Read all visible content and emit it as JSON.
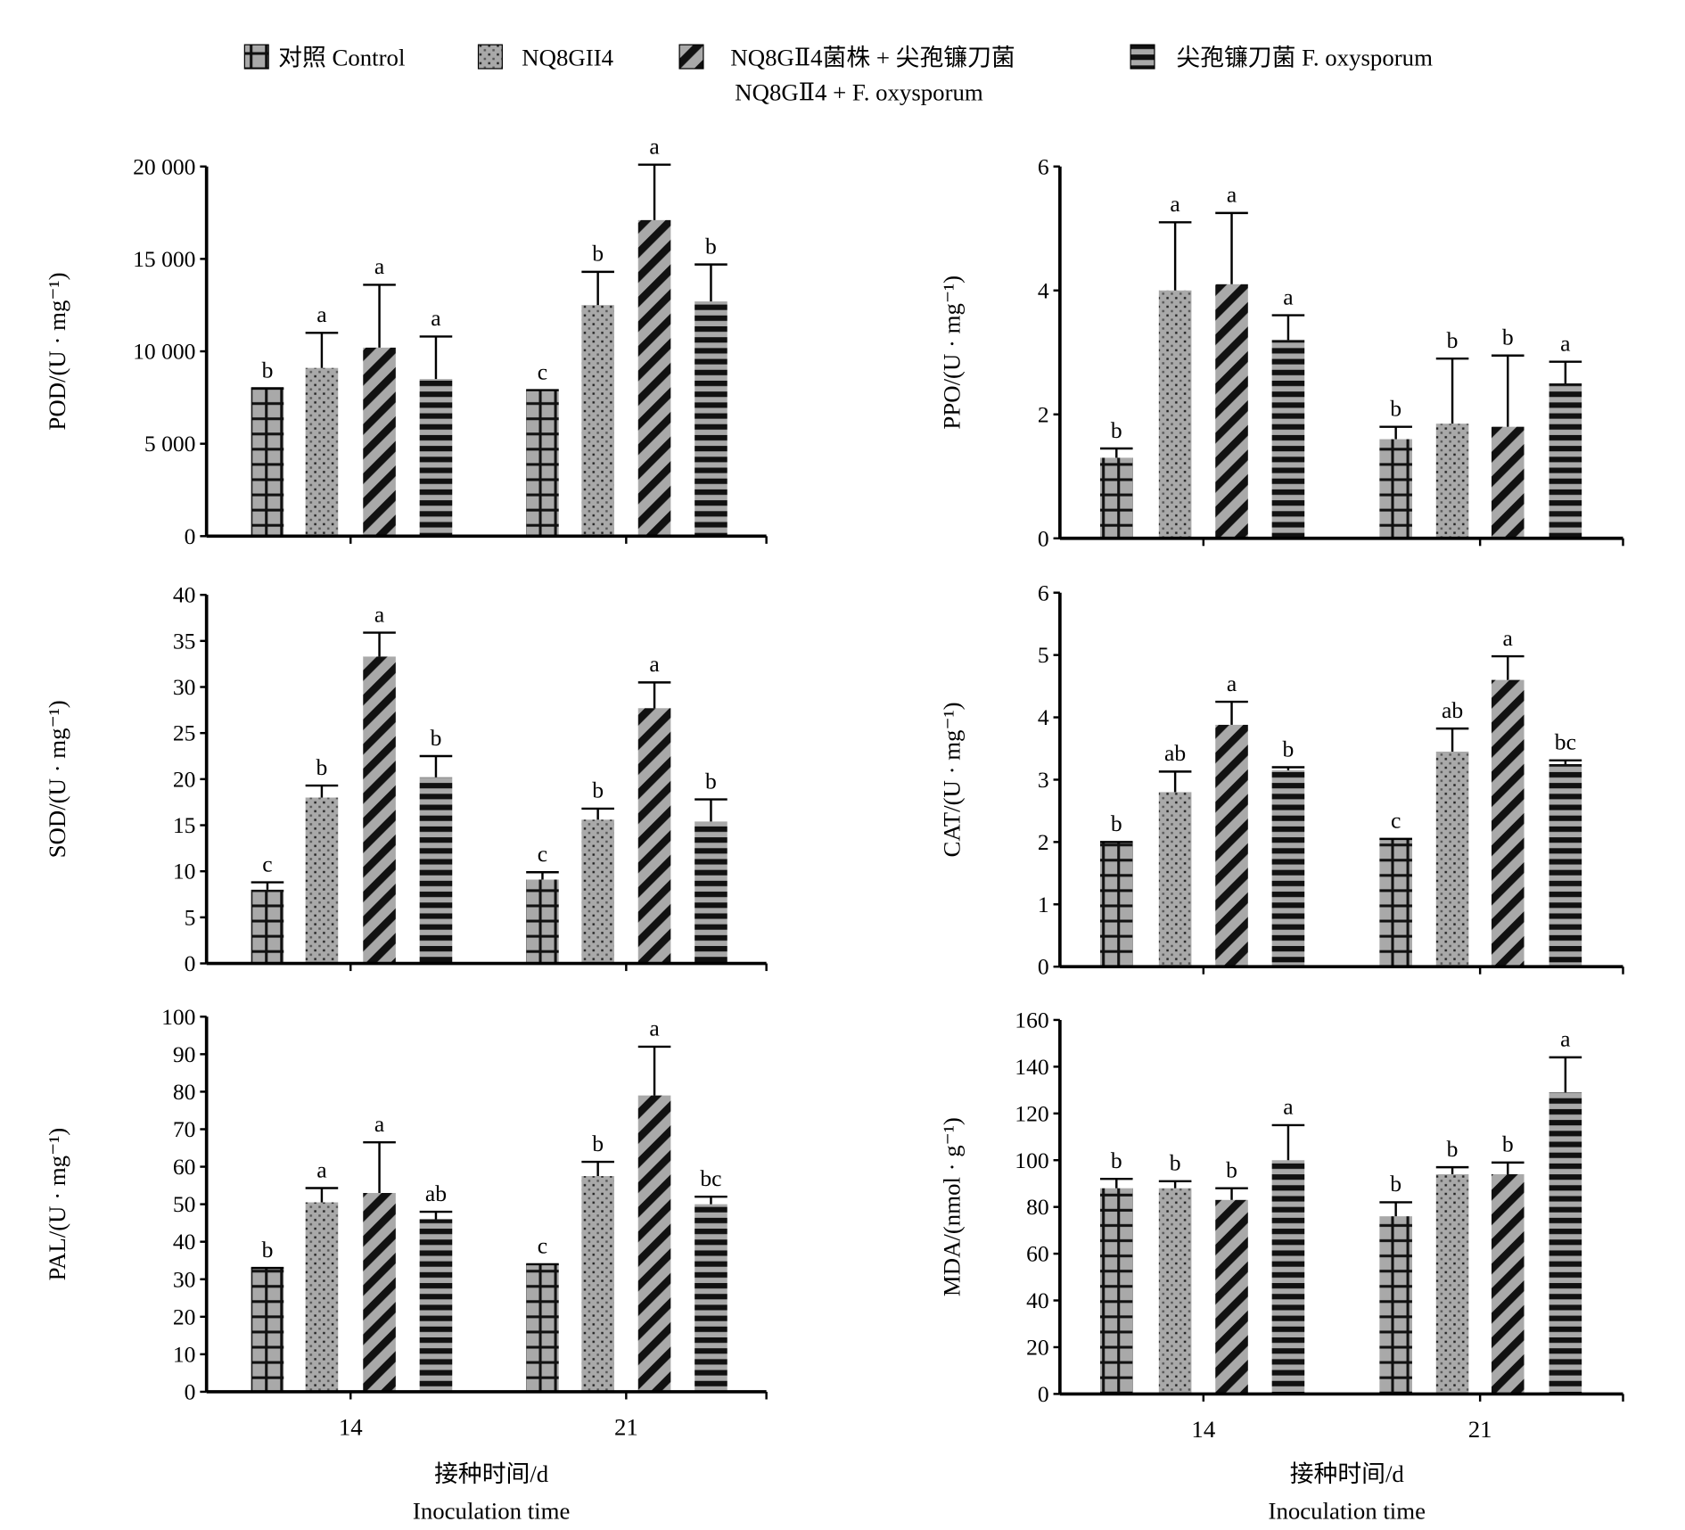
{
  "legend": [
    {
      "label": "对照 Control",
      "pattern": "grid"
    },
    {
      "label": "NQ8GII4",
      "pattern": "dots"
    },
    {
      "label": "NQ8GⅡ4菌株 + 尖孢镰刀菌",
      "label2": "NQ8GⅡ4 + F. oxysporum",
      "pattern": "diag"
    },
    {
      "label": "尖孢镰刀菌 F. oxysporum",
      "pattern": "hstripe"
    }
  ],
  "x_axis": {
    "categories": [
      "14",
      "21"
    ],
    "xlabel_cn": "接种时间/d",
    "xlabel_en": "Inoculation time"
  },
  "colors": {
    "bar_fill": "#a9a9a9",
    "pattern": "#111111"
  },
  "chart_data": [
    {
      "type": "bar",
      "ylabel": "POD/(U · mg⁻¹)",
      "ylim": [
        0,
        20000
      ],
      "ticks": [
        0,
        5000,
        10000,
        15000,
        20000
      ],
      "tick_labels": [
        "0",
        "5 000",
        "10 000",
        "15 000",
        "20 000"
      ],
      "categories": [
        "14",
        "21"
      ],
      "series": [
        {
          "name": "对照 Control",
          "values": [
            8000,
            7900
          ],
          "errors": [
            0,
            0
          ],
          "letters": [
            "b",
            "c"
          ]
        },
        {
          "name": "NQ8GII4",
          "values": [
            9100,
            12500
          ],
          "errors": [
            1900,
            1800
          ],
          "letters": [
            "a",
            "b"
          ]
        },
        {
          "name": "NQ8GⅡ4 + F. oxysporum",
          "values": [
            10200,
            17100
          ],
          "errors": [
            3400,
            3000
          ],
          "letters": [
            "a",
            "a"
          ]
        },
        {
          "name": "F. oxysporum",
          "values": [
            8500,
            12700
          ],
          "errors": [
            2300,
            2000
          ],
          "letters": [
            "a",
            "b"
          ]
        }
      ]
    },
    {
      "type": "bar",
      "ylabel": "PPO/(U · mg⁻¹)",
      "ylim": [
        0,
        6
      ],
      "ticks": [
        0,
        2,
        4,
        6
      ],
      "tick_labels": [
        "0",
        "2",
        "4",
        "6"
      ],
      "categories": [
        "14",
        "21"
      ],
      "series": [
        {
          "name": "对照 Control",
          "values": [
            1.3,
            1.6
          ],
          "errors": [
            0.15,
            0.2
          ],
          "letters": [
            "b",
            "b"
          ]
        },
        {
          "name": "NQ8GII4",
          "values": [
            4.0,
            1.85
          ],
          "errors": [
            1.1,
            1.05
          ],
          "letters": [
            "a",
            "b"
          ]
        },
        {
          "name": "NQ8GⅡ4 + F. oxysporum",
          "values": [
            4.1,
            1.8
          ],
          "errors": [
            1.15,
            1.15
          ],
          "letters": [
            "a",
            "b"
          ]
        },
        {
          "name": "F. oxysporum",
          "values": [
            3.2,
            2.5
          ],
          "errors": [
            0.4,
            0.35
          ],
          "letters": [
            "a",
            "a"
          ]
        }
      ]
    },
    {
      "type": "bar",
      "ylabel": "SOD/(U · mg⁻¹)",
      "ylim": [
        0,
        40
      ],
      "ticks": [
        0,
        5,
        10,
        15,
        20,
        25,
        30,
        35,
        40
      ],
      "tick_labels": [
        "0",
        "5",
        "10",
        "15",
        "20",
        "25",
        "30",
        "35",
        "40"
      ],
      "categories": [
        "14",
        "21"
      ],
      "series": [
        {
          "name": "对照 Control",
          "values": [
            8,
            9.1
          ],
          "errors": [
            0.8,
            0.8
          ],
          "letters": [
            "c",
            "c"
          ]
        },
        {
          "name": "NQ8GII4",
          "values": [
            18,
            15.6
          ],
          "errors": [
            1.3,
            1.2
          ],
          "letters": [
            "b",
            "b"
          ]
        },
        {
          "name": "NQ8GⅡ4 + F. oxysporum",
          "values": [
            33.3,
            27.7
          ],
          "errors": [
            2.6,
            2.8
          ],
          "letters": [
            "a",
            "a"
          ]
        },
        {
          "name": "F. oxysporum",
          "values": [
            20.2,
            15.4
          ],
          "errors": [
            2.3,
            2.4
          ],
          "letters": [
            "b",
            "b"
          ]
        }
      ]
    },
    {
      "type": "bar",
      "ylabel": "CAT/(U · mg⁻¹)",
      "ylim": [
        0,
        6
      ],
      "ticks": [
        0,
        1,
        2,
        3,
        4,
        5,
        6
      ],
      "tick_labels": [
        "0",
        "1",
        "2",
        "3",
        "4",
        "5",
        "6"
      ],
      "categories": [
        "14",
        "21"
      ],
      "series": [
        {
          "name": "对照 Control",
          "values": [
            2.0,
            2.05
          ],
          "errors": [
            0,
            0
          ],
          "letters": [
            "b",
            "c"
          ]
        },
        {
          "name": "NQ8GII4",
          "values": [
            2.8,
            3.45
          ],
          "errors": [
            0.33,
            0.37
          ],
          "letters": [
            "ab",
            "ab"
          ]
        },
        {
          "name": "NQ8GⅡ4 + F. oxysporum",
          "values": [
            3.88,
            4.6
          ],
          "errors": [
            0.37,
            0.38
          ],
          "letters": [
            "a",
            "a"
          ]
        },
        {
          "name": "F. oxysporum",
          "values": [
            3.15,
            3.25
          ],
          "errors": [
            0.05,
            0.06
          ],
          "letters": [
            "b",
            "bc"
          ]
        }
      ]
    },
    {
      "type": "bar",
      "ylabel": "PAL/(U · mg⁻¹)",
      "ylim": [
        0,
        100
      ],
      "ticks": [
        0,
        10,
        20,
        30,
        40,
        50,
        60,
        70,
        80,
        90,
        100
      ],
      "tick_labels": [
        "0",
        "10",
        "20",
        "30",
        "40",
        "50",
        "60",
        "70",
        "80",
        "90",
        "100"
      ],
      "categories": [
        "14",
        "21"
      ],
      "series": [
        {
          "name": "对照 Control",
          "values": [
            33,
            34
          ],
          "errors": [
            0,
            0
          ],
          "letters": [
            "b",
            "c"
          ]
        },
        {
          "name": "NQ8GII4",
          "values": [
            50.5,
            57.5
          ],
          "errors": [
            3.8,
            3.8
          ],
          "letters": [
            "a",
            "b"
          ]
        },
        {
          "name": "NQ8GⅡ4 + F. oxysporum",
          "values": [
            53,
            79
          ],
          "errors": [
            13.5,
            13
          ],
          "letters": [
            "a",
            "a"
          ]
        },
        {
          "name": "F. oxysporum",
          "values": [
            46,
            50
          ],
          "errors": [
            2,
            2
          ],
          "letters": [
            "ab",
            "bc"
          ]
        }
      ]
    },
    {
      "type": "bar",
      "ylabel": "MDA/(nmol · g⁻¹)",
      "ylim": [
        0,
        160
      ],
      "ticks": [
        0,
        20,
        40,
        60,
        80,
        100,
        120,
        140,
        160
      ],
      "tick_labels": [
        "0",
        "20",
        "40",
        "60",
        "80",
        "100",
        "120",
        "140",
        "160"
      ],
      "categories": [
        "14",
        "21"
      ],
      "series": [
        {
          "name": "对照 Control",
          "values": [
            88,
            76
          ],
          "errors": [
            4,
            6
          ],
          "letters": [
            "b",
            "b"
          ]
        },
        {
          "name": "NQ8GII4",
          "values": [
            88,
            94
          ],
          "errors": [
            3,
            3
          ],
          "letters": [
            "b",
            "b"
          ]
        },
        {
          "name": "NQ8GⅡ4 + F. oxysporum",
          "values": [
            83,
            94
          ],
          "errors": [
            5,
            5
          ],
          "letters": [
            "b",
            "b"
          ]
        },
        {
          "name": "F. oxysporum",
          "values": [
            100,
            129
          ],
          "errors": [
            15,
            15
          ],
          "letters": [
            "a",
            "a"
          ]
        }
      ]
    }
  ]
}
